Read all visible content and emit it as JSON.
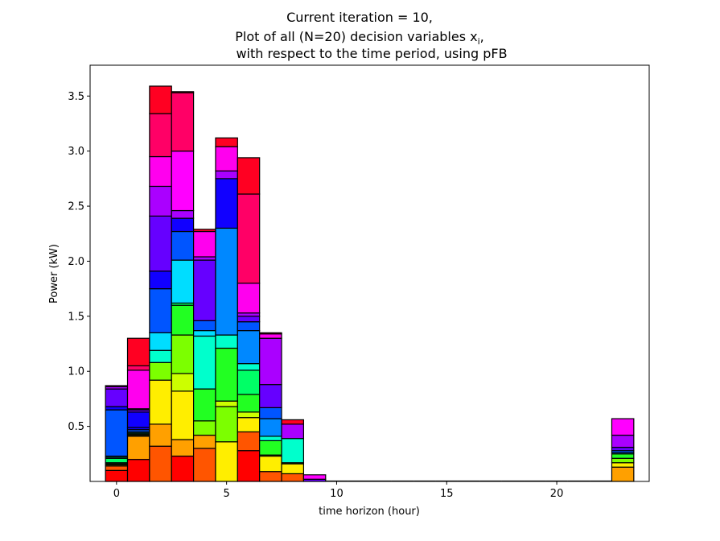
{
  "chart_data": {
    "type": "bar",
    "stacked": true,
    "title_lines": [
      "Current iteration = 10,",
      "Plot of all (N=20) decision variables x",
      "with respect to the time period, using pFB"
    ],
    "title_math_sub": "i",
    "title_math_suffix": ",",
    "xlabel": "time horizon (hour)",
    "ylabel": "Power (kW)",
    "xlim": [
      -1.2,
      24.2
    ],
    "ylim": [
      0,
      3.78
    ],
    "xticks": [
      0,
      5,
      10,
      15,
      20
    ],
    "yticks": [
      0.5,
      1.0,
      1.5,
      2.0,
      2.5,
      3.0,
      3.5
    ],
    "ytick_labels": [
      "0.5",
      "1.0",
      "1.5",
      "2.0",
      "2.5",
      "3.0",
      "3.5"
    ],
    "bar_width": 1.0,
    "grid": false,
    "legend": "none",
    "hours": [
      0,
      1,
      2,
      3,
      4,
      5,
      6,
      7,
      8,
      9,
      23
    ],
    "stacks": [
      [
        [
          0.1,
          "#ff0000"
        ],
        [
          0.04,
          "#ff5500"
        ],
        [
          0.01,
          "#ffee00"
        ],
        [
          0.01,
          "#7cff00"
        ],
        [
          0.01,
          "#22ff22"
        ],
        [
          0.04,
          "#00ff66"
        ],
        [
          0.01,
          "#00ffcc"
        ],
        [
          0.01,
          "#00ddff"
        ],
        [
          0.42,
          "#0055ff"
        ],
        [
          0.03,
          "#1100ff"
        ],
        [
          0.16,
          "#6600ff"
        ],
        [
          0.02,
          "#aa00ff"
        ],
        [
          0.01,
          "#ff00ff"
        ]
      ],
      [
        [
          0.2,
          "#ff0000"
        ],
        [
          0.21,
          "#ffa000"
        ],
        [
          0.01,
          "#ffee00"
        ],
        [
          0.01,
          "#7cff00"
        ],
        [
          0.01,
          "#00ff66"
        ],
        [
          0.01,
          "#00ddff"
        ],
        [
          0.02,
          "#0055ff"
        ],
        [
          0.02,
          "#1100ff"
        ],
        [
          0.14,
          "#1100ff"
        ],
        [
          0.02,
          "#6600ff"
        ],
        [
          0.01,
          "#aa00ff"
        ],
        [
          0.35,
          "#ff00ee"
        ],
        [
          0.04,
          "#ff0066"
        ],
        [
          0.25,
          "#ff0022"
        ]
      ],
      [
        [
          0.32,
          "#ff5500"
        ],
        [
          0.2,
          "#ffa000"
        ],
        [
          0.4,
          "#ffee00"
        ],
        [
          0.16,
          "#7cff00"
        ],
        [
          0.11,
          "#00ffcc"
        ],
        [
          0.16,
          "#00ddff"
        ],
        [
          0.4,
          "#0055ff"
        ],
        [
          0.16,
          "#1100ff"
        ],
        [
          0.5,
          "#6600ff"
        ],
        [
          0.27,
          "#aa00ff"
        ],
        [
          0.27,
          "#ff00ee"
        ],
        [
          0.39,
          "#ff0066"
        ],
        [
          0.25,
          "#ff0022"
        ]
      ],
      [
        [
          0.23,
          "#ff0000"
        ],
        [
          0.15,
          "#ffa000"
        ],
        [
          0.44,
          "#ffee00"
        ],
        [
          0.16,
          "#ccff00"
        ],
        [
          0.35,
          "#7cff00"
        ],
        [
          0.27,
          "#22ff22"
        ],
        [
          0.02,
          "#00ff66"
        ],
        [
          0.39,
          "#00ddff"
        ],
        [
          0.26,
          "#0055ff"
        ],
        [
          0.12,
          "#1100ff"
        ],
        [
          0.07,
          "#aa00ff"
        ],
        [
          0.54,
          "#ff00ff"
        ],
        [
          0.53,
          "#ff0066"
        ],
        [
          0.01,
          "#ff0022"
        ]
      ],
      [
        [
          0.3,
          "#ff5500"
        ],
        [
          0.12,
          "#ffa000"
        ],
        [
          0.13,
          "#7cff00"
        ],
        [
          0.29,
          "#22ff22"
        ],
        [
          0.48,
          "#00ffcc"
        ],
        [
          0.05,
          "#00ddff"
        ],
        [
          0.09,
          "#0055ff"
        ],
        [
          0.55,
          "#6600ff"
        ],
        [
          0.03,
          "#aa00ff"
        ],
        [
          0.23,
          "#ff00ee"
        ],
        [
          0.02,
          "#ff0022"
        ]
      ],
      [
        [
          0.36,
          "#ffee00"
        ],
        [
          0.32,
          "#7cff00"
        ],
        [
          0.05,
          "#ccff00"
        ],
        [
          0.48,
          "#22ff22"
        ],
        [
          0.12,
          "#00ffcc"
        ],
        [
          0.97,
          "#0088ff"
        ],
        [
          0.45,
          "#1100ff"
        ],
        [
          0.07,
          "#aa00ff"
        ],
        [
          0.22,
          "#ff00ee"
        ],
        [
          0.08,
          "#ff0022"
        ]
      ],
      [
        [
          0.28,
          "#ff0000"
        ],
        [
          0.17,
          "#ff5500"
        ],
        [
          0.13,
          "#ffee00"
        ],
        [
          0.05,
          "#ccff00"
        ],
        [
          0.16,
          "#22ff22"
        ],
        [
          0.22,
          "#00ff66"
        ],
        [
          0.06,
          "#00ffcc"
        ],
        [
          0.3,
          "#0088ff"
        ],
        [
          0.08,
          "#0055ff"
        ],
        [
          0.05,
          "#6600ff"
        ],
        [
          0.03,
          "#aa00ff"
        ],
        [
          0.27,
          "#ff00ee"
        ],
        [
          0.81,
          "#ff0066"
        ],
        [
          0.33,
          "#ff0022"
        ]
      ],
      [
        [
          0.09,
          "#ff5500"
        ],
        [
          0.14,
          "#ffee00"
        ],
        [
          0.01,
          "#7cff00"
        ],
        [
          0.13,
          "#22ff22"
        ],
        [
          0.04,
          "#00ffcc"
        ],
        [
          0.16,
          "#0088ff"
        ],
        [
          0.1,
          "#0055ff"
        ],
        [
          0.21,
          "#6600ff"
        ],
        [
          0.42,
          "#aa00ff"
        ],
        [
          0.04,
          "#ff00ee"
        ],
        [
          0.01,
          "#ff0022"
        ]
      ],
      [
        [
          0.07,
          "#ff5500"
        ],
        [
          0.09,
          "#ffee00"
        ],
        [
          0.01,
          "#7cff00"
        ],
        [
          0.22,
          "#00ffcc"
        ],
        [
          0.13,
          "#aa00ff"
        ],
        [
          0.04,
          "#ff0022"
        ]
      ],
      [
        [
          0.02,
          "#6600ff"
        ],
        [
          0.04,
          "#ff00ff"
        ]
      ],
      [
        [
          0.13,
          "#ffa000"
        ],
        [
          0.04,
          "#ffee00"
        ],
        [
          0.04,
          "#7cff00"
        ],
        [
          0.04,
          "#22ff22"
        ],
        [
          0.01,
          "#00ffcc"
        ],
        [
          0.02,
          "#0055ff"
        ],
        [
          0.03,
          "#6600ff"
        ],
        [
          0.11,
          "#aa00ff"
        ],
        [
          0.15,
          "#ff00ff"
        ]
      ]
    ]
  }
}
